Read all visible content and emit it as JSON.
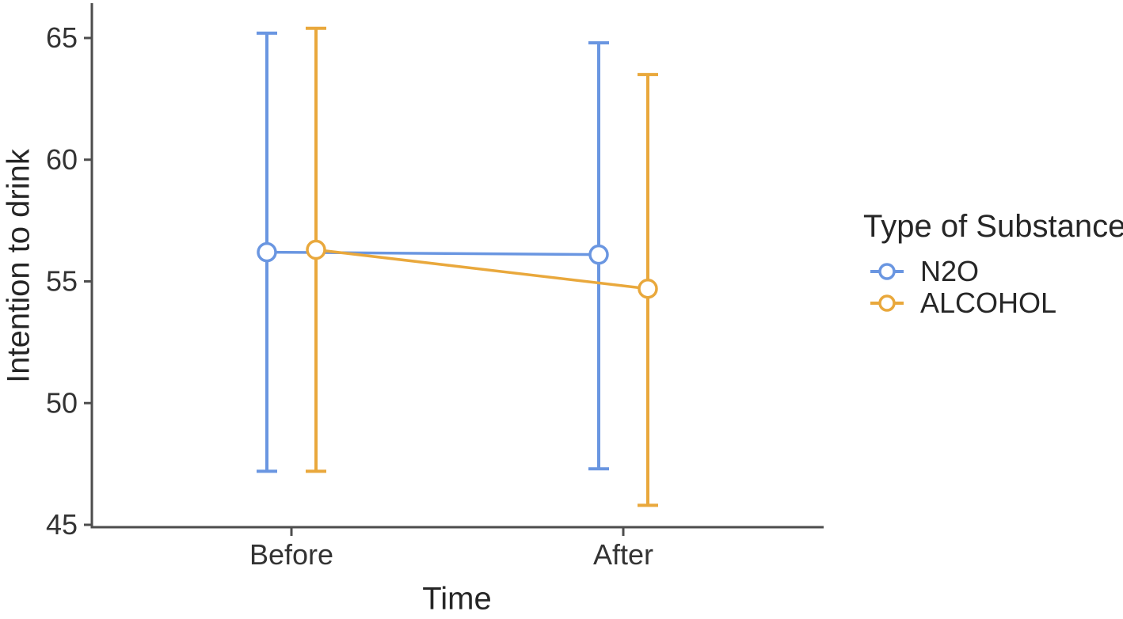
{
  "chart_data": {
    "type": "line",
    "categories": [
      "Before",
      "After"
    ],
    "xlabel": "Time",
    "ylabel": "Intention to drink",
    "yticks": [
      45,
      50,
      55,
      60,
      65
    ],
    "ylim": [
      45,
      66
    ],
    "grid": false,
    "point_style": "open-circle",
    "legend": {
      "title": "Type of Substance",
      "position": "right"
    },
    "series": [
      {
        "name": "N2O",
        "color": "#6A96E1",
        "values": [
          56.2,
          56.1
        ],
        "error_low": [
          47.2,
          47.3
        ],
        "error_high": [
          65.2,
          64.8
        ]
      },
      {
        "name": "ALCOHOL",
        "color": "#E9A83C",
        "values": [
          56.3,
          54.7
        ],
        "error_low": [
          47.2,
          45.8
        ],
        "error_high": [
          65.4,
          63.5
        ]
      }
    ]
  },
  "colors": {
    "axis_line": "#4d4d4d",
    "tick_label": "#333333",
    "title_text": "#262626",
    "background": "#ffffff"
  }
}
